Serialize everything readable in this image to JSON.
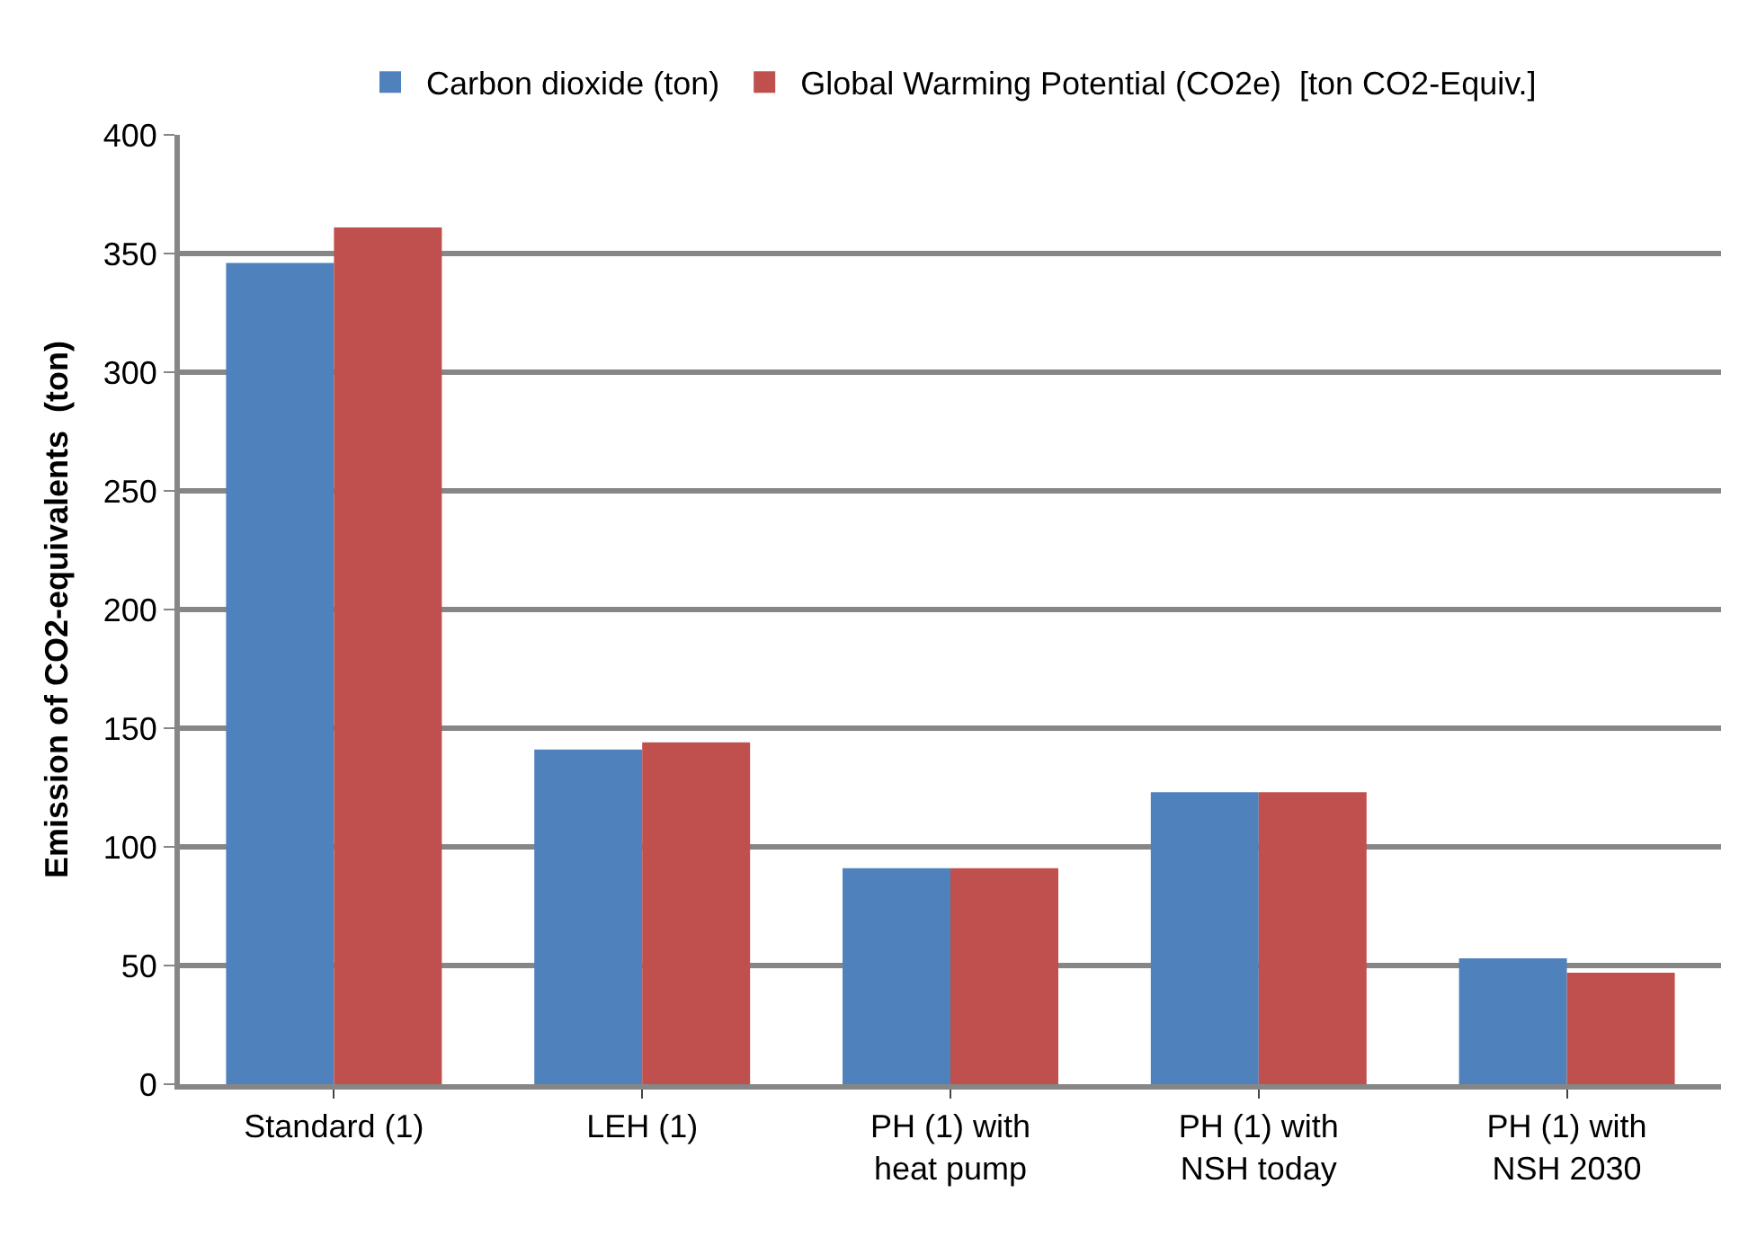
{
  "chart_data": {
    "type": "bar",
    "ylabel": "Emission of CO2-equivalents  (ton)",
    "categories": [
      "Standard (1)",
      "LEH (1)",
      "PH (1) with\nheat pump",
      "PH (1) with\nNSH today",
      "PH (1) with\nNSH 2030"
    ],
    "series": [
      {
        "name": "Carbon dioxide (ton)",
        "color": "#4f81bd",
        "values": [
          346,
          141,
          91,
          123,
          53
        ]
      },
      {
        "name": "Global Warming Potential (CO2e)  [ton CO2-Equiv.]",
        "color": "#c0504d",
        "values": [
          361,
          144,
          91,
          123,
          47
        ]
      }
    ],
    "ylim": [
      0,
      400
    ],
    "yticks": [
      0,
      50,
      100,
      150,
      200,
      250,
      300,
      350,
      400
    ],
    "grid": "y",
    "legend": "top"
  }
}
